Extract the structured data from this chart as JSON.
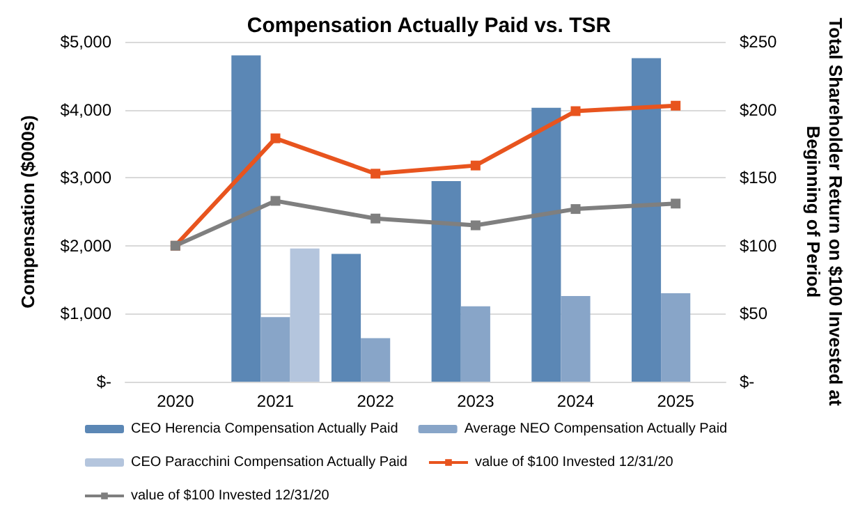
{
  "chart_data": {
    "type": "bar",
    "title": "Compensation Actually Paid vs. TSR",
    "ylabel": "Compensation ($000s)",
    "y2label": "Total Shareholder Return on $100 Invested at Beginning of Period",
    "categories": [
      "2020",
      "2021",
      "2022",
      "2023",
      "2024",
      "2025"
    ],
    "series": [
      {
        "name": "CEO Herencia Compensation Actually Paid",
        "color": "#5b87b5",
        "values": [
          null,
          4800,
          1880,
          2950,
          4030,
          4760
        ]
      },
      {
        "name": "Average NEO Compensation Actually Paid",
        "color": "#88a5c8",
        "values": [
          null,
          950,
          640,
          1110,
          1260,
          1300
        ]
      },
      {
        "name": "CEO Paracchini Compensation Actually Paid",
        "color": "#b4c5dd",
        "values": [
          null,
          1960,
          null,
          null,
          null,
          null
        ]
      },
      {
        "name": "value of $100 Invested 12/31/20",
        "type": "line",
        "axis": "y2",
        "color": "#e8541e",
        "values": [
          100,
          179,
          153,
          159,
          199,
          203
        ]
      },
      {
        "name": "value of $100 Invested 12/31/20",
        "type": "line",
        "axis": "y2",
        "color": "#7f7f7f",
        "values": [
          100,
          133,
          120,
          115,
          127,
          131
        ]
      }
    ],
    "ylim": [
      0,
      5000
    ],
    "yticks": [
      {
        "value": 0,
        "label": "$-"
      },
      {
        "value": 1000,
        "label": "$1,000"
      },
      {
        "value": 2000,
        "label": "$2,000"
      },
      {
        "value": 3000,
        "label": "$3,000"
      },
      {
        "value": 4000,
        "label": "$4,000"
      },
      {
        "value": 5000,
        "label": "$5,000"
      }
    ],
    "y2lim": [
      0,
      250
    ],
    "y2ticks": [
      {
        "value": 0,
        "label": "$-"
      },
      {
        "value": 50,
        "label": "$50"
      },
      {
        "value": 100,
        "label": "$100"
      },
      {
        "value": 150,
        "label": "$150"
      },
      {
        "value": 200,
        "label": "$200"
      },
      {
        "value": 250,
        "label": "$250"
      }
    ],
    "grid": "y",
    "legend": "bottom",
    "marker": "square",
    "line_style": "solid"
  }
}
